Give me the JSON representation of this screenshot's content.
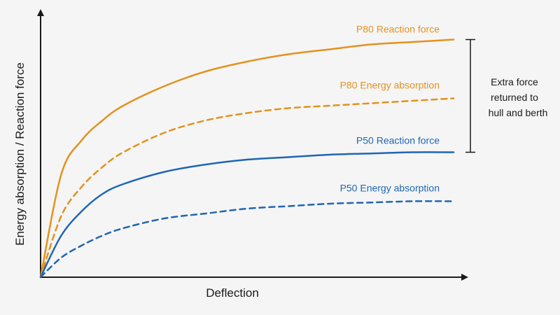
{
  "chart_data": {
    "type": "line",
    "title": "",
    "xlabel": "Deflection",
    "ylabel": "Energy absorption / Reaction force",
    "grid": false,
    "legend": "inline labels",
    "xlim": [
      0,
      1
    ],
    "ylim": [
      0,
      1
    ],
    "x": [
      0,
      0.05,
      0.1,
      0.15,
      0.2,
      0.3,
      0.4,
      0.5,
      0.6,
      0.7,
      0.8,
      0.9,
      1.0
    ],
    "series": [
      {
        "name": "P80 Reaction force",
        "color": "#e3921e",
        "style": "solid",
        "values": [
          0,
          0.42,
          0.56,
          0.64,
          0.7,
          0.78,
          0.84,
          0.88,
          0.91,
          0.93,
          0.95,
          0.96,
          0.97
        ]
      },
      {
        "name": "P80 Energy absorption",
        "color": "#e3921e",
        "style": "dashed",
        "values": [
          0,
          0.25,
          0.37,
          0.45,
          0.51,
          0.59,
          0.64,
          0.67,
          0.69,
          0.7,
          0.71,
          0.72,
          0.73
        ]
      },
      {
        "name": "P50 Reaction force",
        "color": "#1f66b4",
        "style": "solid",
        "values": [
          0,
          0.17,
          0.27,
          0.34,
          0.38,
          0.43,
          0.46,
          0.48,
          0.49,
          0.5,
          0.505,
          0.51,
          0.51
        ]
      },
      {
        "name": "P50 Energy absorption",
        "color": "#1f66b4",
        "style": "dashed",
        "values": [
          0,
          0.08,
          0.13,
          0.17,
          0.2,
          0.24,
          0.26,
          0.28,
          0.29,
          0.3,
          0.305,
          0.31,
          0.31
        ]
      }
    ],
    "annotations": [
      {
        "text_lines": [
          "Extra force",
          "returned to",
          "hull and berth"
        ],
        "spans": [
          0.51,
          0.97
        ]
      }
    ]
  }
}
